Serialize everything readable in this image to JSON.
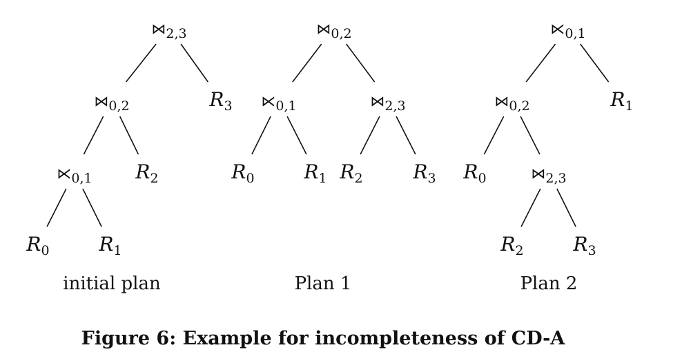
{
  "figure": {
    "caption": "Figure 6: Example for incompleteness of CD-A"
  },
  "plans": [
    {
      "id": "initial",
      "label": "initial plan",
      "root": {
        "op": "⋈",
        "sub": "2,3",
        "children": [
          {
            "op": "⋈",
            "sub": "0,2",
            "children": [
              {
                "op": "⋉",
                "sub": "0,1",
                "children": [
                  {
                    "rel": "R",
                    "sub": "0"
                  },
                  {
                    "rel": "R",
                    "sub": "1"
                  }
                ]
              },
              {
                "rel": "R",
                "sub": "2"
              }
            ]
          },
          {
            "rel": "R",
            "sub": "3"
          }
        ]
      }
    },
    {
      "id": "plan1",
      "label": "Plan 1",
      "root": {
        "op": "⋈",
        "sub": "0,2",
        "children": [
          {
            "op": "⋉",
            "sub": "0,1",
            "children": [
              {
                "rel": "R",
                "sub": "0"
              },
              {
                "rel": "R",
                "sub": "1"
              }
            ]
          },
          {
            "op": "⋈",
            "sub": "2,3",
            "children": [
              {
                "rel": "R",
                "sub": "2"
              },
              {
                "rel": "R",
                "sub": "3"
              }
            ]
          }
        ]
      }
    },
    {
      "id": "plan2",
      "label": "Plan 2",
      "root": {
        "op": "⋉",
        "sub": "0,1",
        "children": [
          {
            "op": "⋈",
            "sub": "0,2",
            "children": [
              {
                "rel": "R",
                "sub": "0"
              },
              {
                "op": "⋈",
                "sub": "2,3",
                "children": [
                  {
                    "rel": "R",
                    "sub": "2"
                  },
                  {
                    "rel": "R",
                    "sub": "3"
                  }
                ]
              }
            ]
          },
          {
            "rel": "R",
            "sub": "1"
          }
        ]
      }
    }
  ]
}
